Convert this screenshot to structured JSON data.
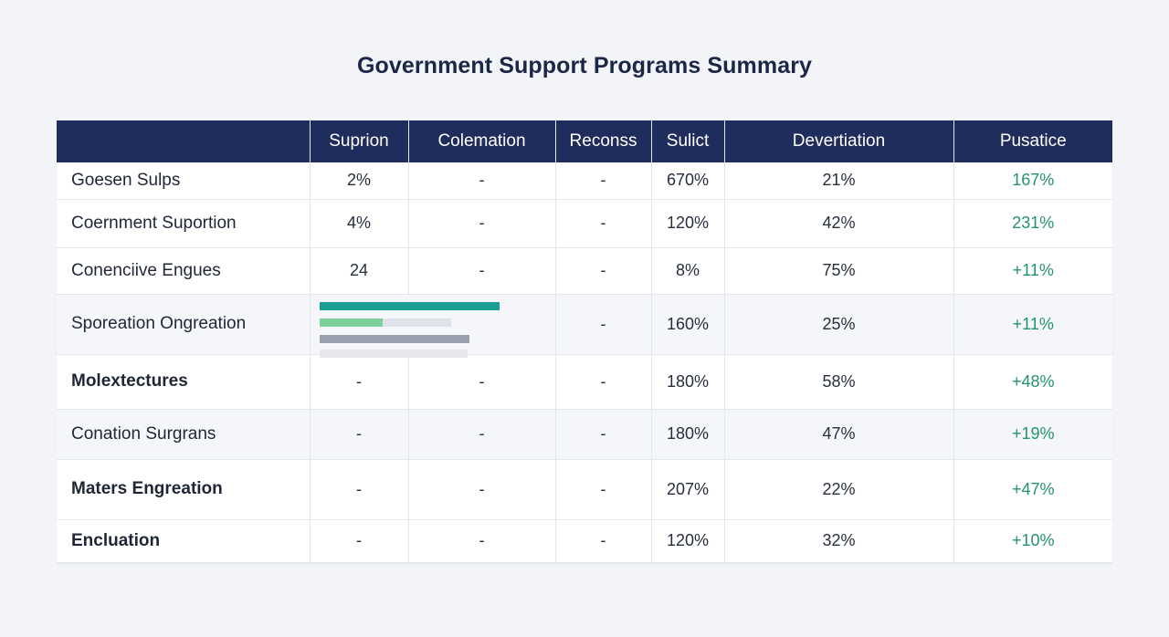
{
  "chart_data": {
    "type": "table",
    "title": "Government Support Programs Summary",
    "columns": [
      "",
      "Suprion",
      "Colemation",
      "Reconss",
      "Sulict",
      "Devertiation",
      "Pusatice"
    ],
    "rows": [
      {
        "label": "Goesen Sulps",
        "values": [
          "2%",
          "-",
          "-",
          "670%",
          "21%",
          "167%"
        ]
      },
      {
        "label": "Coernment Suportion",
        "values": [
          "4%",
          "-",
          "-",
          "120%",
          "42%",
          "231%"
        ]
      },
      {
        "label": "Conenciive Engues",
        "values": [
          "24",
          "-",
          "-",
          "8%",
          "75%",
          "+11%"
        ]
      },
      {
        "label": "Sporeation Ongreation",
        "values": [
          "",
          "",
          "-",
          "160%",
          "25%",
          "+11%"
        ]
      },
      {
        "label": "Molextectures",
        "values": [
          "-",
          "-",
          "-",
          "180%",
          "58%",
          "+48%"
        ]
      },
      {
        "label": "Conation Surgrans",
        "values": [
          "-",
          "-",
          "-",
          "180%",
          "47%",
          "+19%"
        ]
      },
      {
        "label": "Maters Engreation",
        "values": [
          "-",
          "-",
          "-",
          "207%",
          "22%",
          "+47%"
        ]
      },
      {
        "label": "Encluation",
        "values": [
          "-",
          "-",
          "-",
          "120%",
          "32%",
          "+10%"
        ]
      }
    ],
    "inline_bars": [
      {
        "fraction": 1.0,
        "color": "#1a9e94"
      },
      {
        "fraction": 0.35,
        "color": "#7fcf9a",
        "track_fraction": 0.73,
        "track_color": "#dfe2e8"
      },
      {
        "fraction": 0.83,
        "color": "#9aa0ad"
      },
      {
        "fraction": 0.82,
        "color": "#e6e8ed"
      }
    ]
  },
  "colors": {
    "header_bg": "#1f2d5c",
    "positive": "#23946a",
    "page_bg": "#f2f4f7"
  }
}
